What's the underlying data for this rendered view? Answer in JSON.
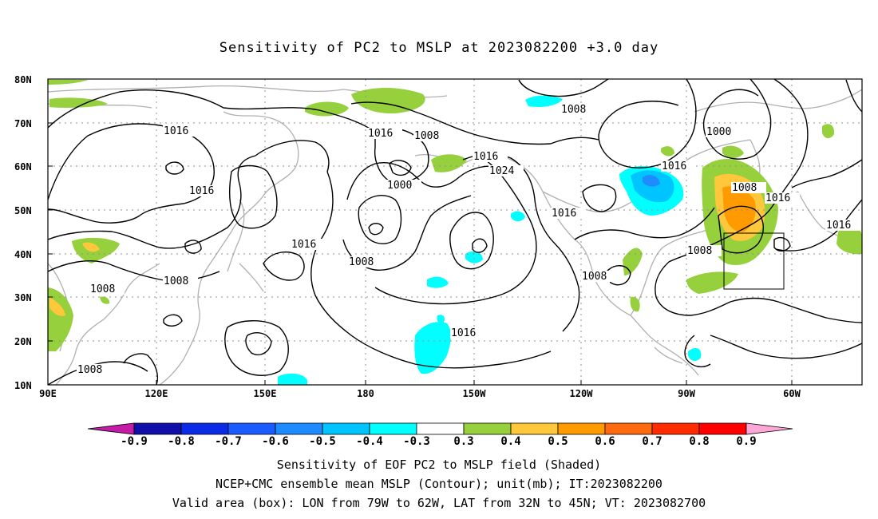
{
  "title": "Sensitivity of PC2 to MSLP at 2023082200 +3.0 day",
  "axes": {
    "lat_labels": [
      "80N",
      "70N",
      "60N",
      "50N",
      "40N",
      "30N",
      "20N",
      "10N"
    ],
    "lon_labels": [
      "90E",
      "120E",
      "150E",
      "180",
      "150W",
      "120W",
      "90W",
      "60W"
    ]
  },
  "contour_labels": [
    "1008",
    "1016",
    "1016",
    "1016",
    "1008",
    "1016",
    "1008",
    "1016",
    "1000",
    "1008",
    "1016",
    "1024",
    "1016",
    "1008",
    "1016",
    "1008",
    "1000",
    "1016",
    "1008",
    "1016",
    "1016",
    "1008",
    "1008"
  ],
  "colorbar": {
    "labels": [
      "-0.9",
      "-0.8",
      "-0.7",
      "-0.6",
      "-0.5",
      "-0.4",
      "-0.3",
      "0.3",
      "0.4",
      "0.5",
      "0.6",
      "0.7",
      "0.8",
      "0.9"
    ],
    "colors": [
      "#c41ca6",
      "#1010a8",
      "#0a2ce6",
      "#1a5cff",
      "#1e8cff",
      "#00c4ff",
      "#00ffff",
      "#ffffff",
      "#96d03c",
      "#ffc83c",
      "#ff9a00",
      "#ff6a10",
      "#ff2c00",
      "#ff0000",
      "#ffa8d8"
    ]
  },
  "captions": {
    "line1": "Sensitivity of EOF PC2 to MSLP field (Shaded)",
    "line2": "NCEP+CMC ensemble mean MSLP (Contour); unit(mb); IT:2023082200",
    "line3": "Valid area (box): LON from 79W to 62W, LAT from 32N to 45N; VT: 2023082700"
  }
}
